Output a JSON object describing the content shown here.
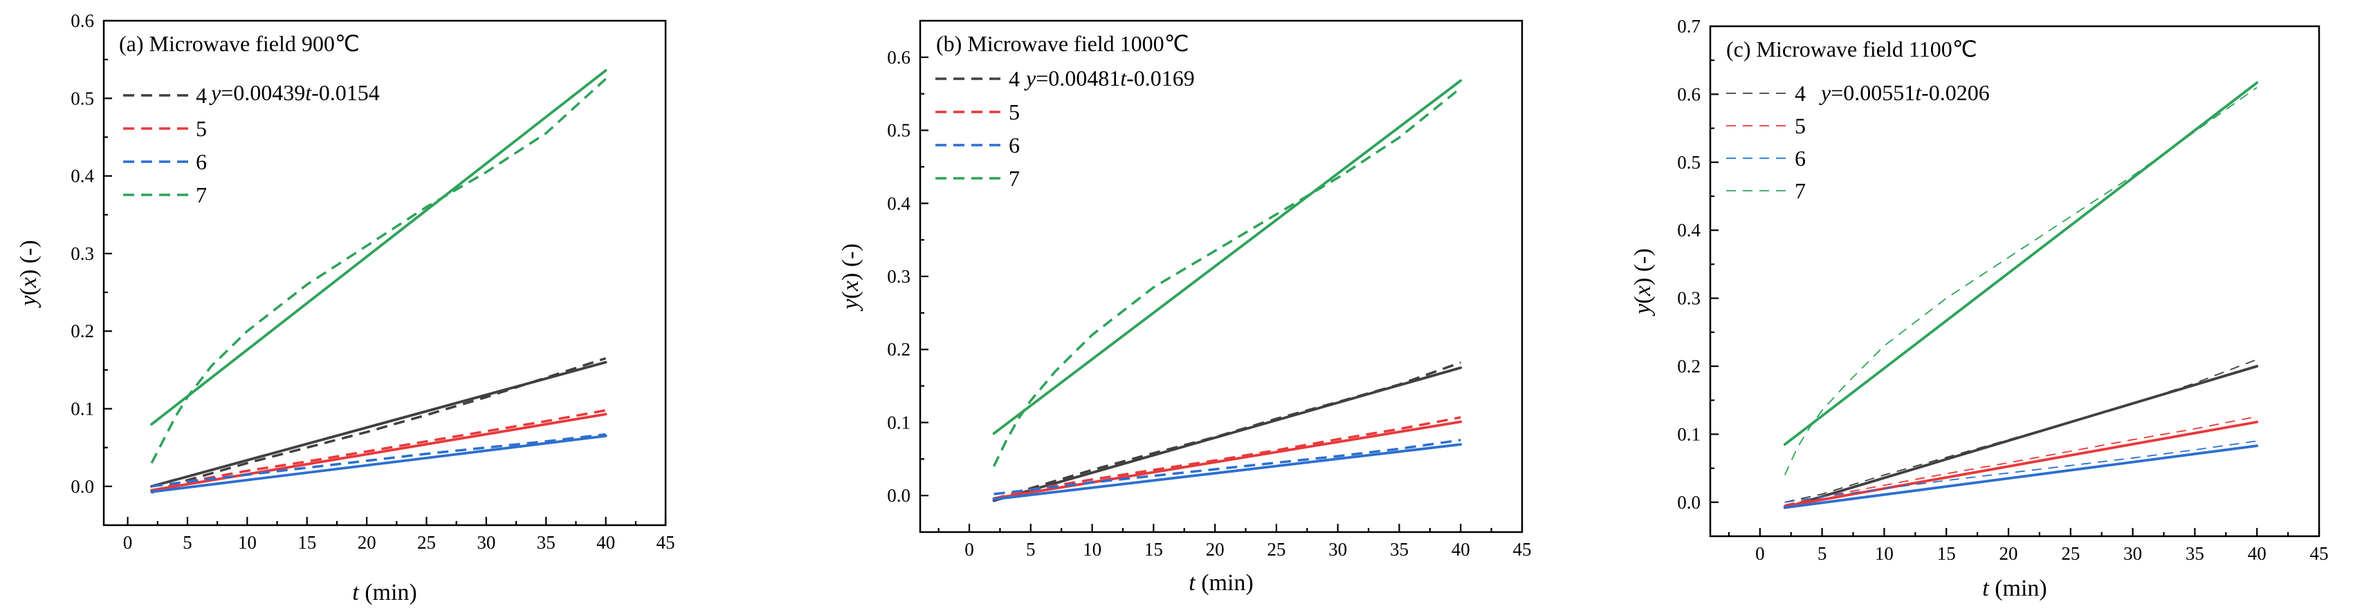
{
  "figure": {
    "colors": {
      "s4": "#404040",
      "s5": "#e8393b",
      "s6": "#2c6fcf",
      "s7": "#2ea35a"
    }
  },
  "chart_data": [
    {
      "type": "line",
      "title": "(a)  Microwave field  900℃",
      "xlabel_italic": "t",
      "xlabel_rest": " (min)",
      "ylabel_italic": "y",
      "ylabel_mid": "(",
      "ylabel_italic2": "x",
      "ylabel_rest": ") (-)",
      "xlim": [
        -2,
        45
      ],
      "ylim": [
        -0.05,
        0.6
      ],
      "xticks": [
        0,
        5,
        10,
        15,
        20,
        25,
        30,
        35,
        40,
        45
      ],
      "yticks": [
        0.0,
        0.1,
        0.2,
        0.3,
        0.4,
        0.5,
        0.6
      ],
      "ytick_labels": [
        "0.0",
        "0.1",
        "0.2",
        "0.3",
        "0.4",
        "0.5",
        "0.6"
      ],
      "equation": {
        "y": "y",
        "mid": "=0.00439",
        "t": "t",
        "rest": "-0.0154"
      },
      "legend": [
        "4",
        "5",
        "6",
        "7"
      ],
      "series": [
        {
          "name": "4",
          "color_key": "s4",
          "fit": [
            [
              2,
              0.0
            ],
            [
              40,
              0.16
            ]
          ],
          "data": [
            [
              2,
              -0.008
            ],
            [
              5,
              0.008
            ],
            [
              10,
              0.03
            ],
            [
              15,
              0.05
            ],
            [
              20,
              0.07
            ],
            [
              25,
              0.092
            ],
            [
              30,
              0.115
            ],
            [
              35,
              0.14
            ],
            [
              40,
              0.165
            ]
          ]
        },
        {
          "name": "5",
          "color_key": "s5",
          "fit": [
            [
              2,
              -0.005
            ],
            [
              40,
              0.093
            ]
          ],
          "data": [
            [
              2,
              -0.006
            ],
            [
              5,
              0.006
            ],
            [
              10,
              0.02
            ],
            [
              15,
              0.032
            ],
            [
              20,
              0.045
            ],
            [
              25,
              0.058
            ],
            [
              30,
              0.071
            ],
            [
              35,
              0.084
            ],
            [
              40,
              0.098
            ]
          ]
        },
        {
          "name": "6",
          "color_key": "s6",
          "fit": [
            [
              2,
              -0.007
            ],
            [
              40,
              0.065
            ]
          ],
          "data": [
            [
              2,
              0.0
            ],
            [
              5,
              0.006
            ],
            [
              10,
              0.015
            ],
            [
              15,
              0.024
            ],
            [
              20,
              0.033
            ],
            [
              25,
              0.042
            ],
            [
              30,
              0.05
            ],
            [
              35,
              0.058
            ],
            [
              40,
              0.067
            ]
          ]
        },
        {
          "name": "7",
          "color_key": "s7",
          "fit": [
            [
              2,
              0.08
            ],
            [
              40,
              0.536
            ]
          ],
          "data": [
            [
              2,
              0.03
            ],
            [
              3,
              0.06
            ],
            [
              4,
              0.09
            ],
            [
              5,
              0.115
            ],
            [
              6,
              0.135
            ],
            [
              7,
              0.155
            ],
            [
              10,
              0.2
            ],
            [
              15,
              0.26
            ],
            [
              20,
              0.31
            ],
            [
              25,
              0.36
            ],
            [
              30,
              0.405
            ],
            [
              35,
              0.455
            ],
            [
              40,
              0.525
            ]
          ]
        }
      ]
    },
    {
      "type": "line",
      "title": "(b) Microwave field 1000℃",
      "xlabel_italic": "t",
      "xlabel_rest": " (min)",
      "ylabel_italic": "y",
      "ylabel_mid": "(",
      "ylabel_italic2": "x",
      "ylabel_rest": ") (-)",
      "xlim": [
        -4,
        45
      ],
      "ylim": [
        -0.05,
        0.65
      ],
      "xticks": [
        0,
        5,
        10,
        15,
        20,
        25,
        30,
        35,
        40,
        45
      ],
      "yticks": [
        0.0,
        0.1,
        0.2,
        0.3,
        0.4,
        0.5,
        0.6
      ],
      "ytick_labels": [
        "0.0",
        "0.1",
        "0.2",
        "0.3",
        "0.4",
        "0.5",
        "0.6"
      ],
      "equation": {
        "y": "y",
        "mid": "=0.00481",
        "t": "t",
        "rest": "-0.0169"
      },
      "legend": [
        "4",
        "5",
        "6",
        "7"
      ],
      "series": [
        {
          "name": "4",
          "color_key": "s4",
          "fit": [
            [
              2,
              -0.007
            ],
            [
              40,
              0.175
            ]
          ],
          "data": [
            [
              2,
              -0.005
            ],
            [
              5,
              0.01
            ],
            [
              10,
              0.035
            ],
            [
              15,
              0.058
            ],
            [
              20,
              0.08
            ],
            [
              25,
              0.105
            ],
            [
              30,
              0.128
            ],
            [
              35,
              0.152
            ],
            [
              40,
              0.182
            ]
          ]
        },
        {
          "name": "5",
          "color_key": "s5",
          "fit": [
            [
              2,
              -0.004
            ],
            [
              40,
              0.101
            ]
          ],
          "data": [
            [
              2,
              -0.004
            ],
            [
              5,
              0.008
            ],
            [
              10,
              0.022
            ],
            [
              15,
              0.035
            ],
            [
              20,
              0.048
            ],
            [
              25,
              0.062
            ],
            [
              30,
              0.077
            ],
            [
              35,
              0.091
            ],
            [
              40,
              0.107
            ]
          ]
        },
        {
          "name": "6",
          "color_key": "s6",
          "fit": [
            [
              2,
              -0.005
            ],
            [
              40,
              0.07
            ]
          ],
          "data": [
            [
              2,
              0.002
            ],
            [
              5,
              0.008
            ],
            [
              10,
              0.018
            ],
            [
              15,
              0.027
            ],
            [
              20,
              0.036
            ],
            [
              25,
              0.045
            ],
            [
              30,
              0.054
            ],
            [
              35,
              0.064
            ],
            [
              40,
              0.076
            ]
          ]
        },
        {
          "name": "7",
          "color_key": "s7",
          "fit": [
            [
              2,
              0.085
            ],
            [
              40,
              0.568
            ]
          ],
          "data": [
            [
              2,
              0.04
            ],
            [
              3,
              0.075
            ],
            [
              4,
              0.105
            ],
            [
              5,
              0.13
            ],
            [
              6,
              0.15
            ],
            [
              7,
              0.17
            ],
            [
              10,
              0.22
            ],
            [
              15,
              0.285
            ],
            [
              20,
              0.335
            ],
            [
              25,
              0.385
            ],
            [
              30,
              0.435
            ],
            [
              35,
              0.49
            ],
            [
              40,
              0.558
            ]
          ]
        }
      ]
    },
    {
      "type": "line",
      "title": "(c) Microwave field 1100℃",
      "xlabel_italic": "t",
      "xlabel_rest": " (min)",
      "ylabel_italic": "y",
      "ylabel_mid": "(",
      "ylabel_italic2": "x",
      "ylabel_rest": ") (-)",
      "xlim": [
        -4,
        45
      ],
      "ylim": [
        -0.05,
        0.7
      ],
      "xticks": [
        0,
        5,
        10,
        15,
        20,
        25,
        30,
        35,
        40,
        45
      ],
      "yticks": [
        0.0,
        0.1,
        0.2,
        0.3,
        0.4,
        0.5,
        0.6,
        0.7
      ],
      "ytick_labels": [
        "0.0",
        "0.1",
        "0.2",
        "0.3",
        "0.4",
        "0.5",
        "0.6",
        "0.7"
      ],
      "equation": {
        "y": "y",
        "mid": "=0.00551",
        "t": "t",
        "rest": "-0.0206"
      },
      "legend": [
        "4",
        "5",
        "6",
        "7"
      ],
      "series": [
        {
          "name": "4",
          "color_key": "s4",
          "fit": [
            [
              2,
              -0.008
            ],
            [
              40,
              0.2
            ]
          ],
          "data": [
            [
              2,
              0.0
            ],
            [
              5,
              0.012
            ],
            [
              10,
              0.04
            ],
            [
              15,
              0.066
            ],
            [
              20,
              0.092
            ],
            [
              25,
              0.118
            ],
            [
              30,
              0.145
            ],
            [
              35,
              0.175
            ],
            [
              40,
              0.21
            ]
          ]
        },
        {
          "name": "5",
          "color_key": "s5",
          "fit": [
            [
              2,
              -0.006
            ],
            [
              40,
              0.118
            ]
          ],
          "data": [
            [
              2,
              -0.004
            ],
            [
              5,
              0.008
            ],
            [
              10,
              0.025
            ],
            [
              15,
              0.042
            ],
            [
              20,
              0.058
            ],
            [
              25,
              0.075
            ],
            [
              30,
              0.092
            ],
            [
              35,
              0.108
            ],
            [
              40,
              0.126
            ]
          ]
        },
        {
          "name": "6",
          "color_key": "s6",
          "fit": [
            [
              2,
              -0.008
            ],
            [
              40,
              0.083
            ]
          ],
          "data": [
            [
              2,
              0.0
            ],
            [
              5,
              0.008
            ],
            [
              10,
              0.02
            ],
            [
              15,
              0.032
            ],
            [
              20,
              0.043
            ],
            [
              25,
              0.054
            ],
            [
              30,
              0.065
            ],
            [
              35,
              0.077
            ],
            [
              40,
              0.09
            ]
          ]
        },
        {
          "name": "7",
          "color_key": "s7",
          "fit": [
            [
              2,
              0.085
            ],
            [
              40,
              0.617
            ]
          ],
          "data": [
            [
              2,
              0.04
            ],
            [
              3,
              0.08
            ],
            [
              4,
              0.11
            ],
            [
              5,
              0.135
            ],
            [
              6,
              0.155
            ],
            [
              7,
              0.175
            ],
            [
              10,
              0.23
            ],
            [
              15,
              0.3
            ],
            [
              20,
              0.36
            ],
            [
              25,
              0.42
            ],
            [
              30,
              0.48
            ],
            [
              35,
              0.545
            ],
            [
              40,
              0.61
            ]
          ]
        }
      ]
    }
  ]
}
